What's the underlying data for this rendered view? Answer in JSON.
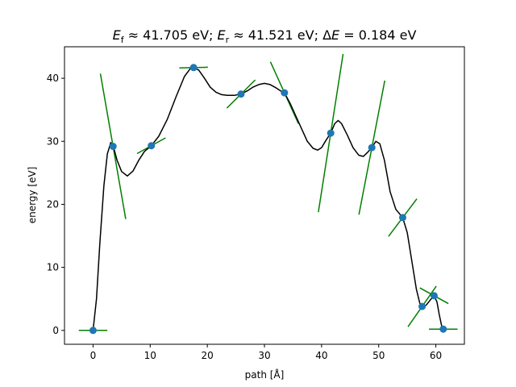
{
  "chart_data": {
    "type": "line",
    "title": "E_f ≈ 41.705 eV; E_r ≈ 41.521 eV; ΔE = 0.184 eV",
    "title_parts": {
      "ef_sym": "E",
      "ef_sub": "f",
      "ef_val": " ≈ 41.705 eV; ",
      "er_sym": "E",
      "er_sub": "r",
      "er_val": " ≈ 41.521 eV; Δ",
      "de_sym": "E",
      "de_val": " = 0.184 eV"
    },
    "xlabel": "path [Å]",
    "ylabel": "energy [eV]",
    "xlim": [
      -5,
      65
    ],
    "ylim": [
      -2.2,
      45
    ],
    "xticks": [
      0,
      10,
      20,
      30,
      40,
      50,
      60
    ],
    "yticks": [
      0,
      10,
      20,
      30,
      40
    ],
    "grid": false,
    "colors": {
      "points": "#1f77b4",
      "curve": "#000000",
      "tangents": "#008000"
    },
    "images": [
      {
        "x": 0.0,
        "y": 0.0,
        "slope": 0.0
      },
      {
        "x": 3.5,
        "y": 29.2,
        "slope": -5.2
      },
      {
        "x": 10.2,
        "y": 29.3,
        "slope": 0.5
      },
      {
        "x": 17.6,
        "y": 41.7,
        "slope": 0.02
      },
      {
        "x": 25.9,
        "y": 37.5,
        "slope": 0.9
      },
      {
        "x": 33.5,
        "y": 37.7,
        "slope": -2.0
      },
      {
        "x": 41.6,
        "y": 31.3,
        "slope": 5.8
      },
      {
        "x": 48.8,
        "y": 29.0,
        "slope": 4.7
      },
      {
        "x": 54.2,
        "y": 17.9,
        "slope": 1.2
      },
      {
        "x": 57.6,
        "y": 3.8,
        "slope": 1.3
      },
      {
        "x": 59.7,
        "y": 5.5,
        "slope": -0.5
      },
      {
        "x": 61.3,
        "y": 0.2,
        "slope": 0.0
      }
    ],
    "curve": [
      [
        0.0,
        0.0
      ],
      [
        0.6,
        5
      ],
      [
        1.2,
        14
      ],
      [
        1.9,
        23
      ],
      [
        2.5,
        28
      ],
      [
        3.1,
        29.8
      ],
      [
        3.6,
        29.0
      ],
      [
        4.2,
        27.0
      ],
      [
        5.0,
        25.2
      ],
      [
        6.0,
        24.5
      ],
      [
        7.0,
        25.3
      ],
      [
        8.0,
        27.0
      ],
      [
        9.0,
        28.4
      ],
      [
        10.2,
        29.3
      ],
      [
        11.5,
        30.8
      ],
      [
        13.0,
        33.5
      ],
      [
        14.5,
        37.0
      ],
      [
        16.0,
        40.3
      ],
      [
        17.0,
        41.5
      ],
      [
        17.6,
        41.7
      ],
      [
        18.5,
        41.3
      ],
      [
        19.5,
        40.0
      ],
      [
        20.5,
        38.6
      ],
      [
        21.5,
        37.8
      ],
      [
        22.5,
        37.4
      ],
      [
        23.5,
        37.3
      ],
      [
        24.8,
        37.3
      ],
      [
        25.9,
        37.5
      ],
      [
        27.0,
        38.0
      ],
      [
        28.0,
        38.6
      ],
      [
        29.0,
        39.0
      ],
      [
        30.0,
        39.2
      ],
      [
        31.0,
        39.0
      ],
      [
        32.0,
        38.5
      ],
      [
        33.0,
        37.9
      ],
      [
        33.5,
        37.7
      ],
      [
        34.5,
        36.0
      ],
      [
        35.5,
        34.0
      ],
      [
        36.5,
        32.0
      ],
      [
        37.5,
        30.0
      ],
      [
        38.5,
        28.9
      ],
      [
        39.3,
        28.6
      ],
      [
        40.0,
        29.0
      ],
      [
        40.8,
        30.2
      ],
      [
        41.6,
        31.3
      ],
      [
        42.3,
        32.8
      ],
      [
        42.9,
        33.3
      ],
      [
        43.5,
        32.8
      ],
      [
        44.5,
        31.0
      ],
      [
        45.5,
        29.0
      ],
      [
        46.5,
        27.8
      ],
      [
        47.3,
        27.6
      ],
      [
        48.0,
        28.2
      ],
      [
        48.8,
        29.0
      ],
      [
        49.5,
        30.0
      ],
      [
        50.2,
        29.6
      ],
      [
        51.0,
        27.0
      ],
      [
        52.0,
        22.0
      ],
      [
        53.0,
        19.2
      ],
      [
        54.2,
        17.9
      ],
      [
        55.0,
        15.5
      ],
      [
        55.8,
        11.0
      ],
      [
        56.6,
        6.5
      ],
      [
        57.2,
        4.3
      ],
      [
        57.6,
        3.8
      ],
      [
        58.3,
        4.0
      ],
      [
        59.0,
        4.8
      ],
      [
        59.7,
        5.5
      ],
      [
        60.2,
        4.5
      ],
      [
        60.6,
        2.5
      ],
      [
        61.0,
        0.8
      ],
      [
        61.3,
        0.2
      ]
    ]
  }
}
